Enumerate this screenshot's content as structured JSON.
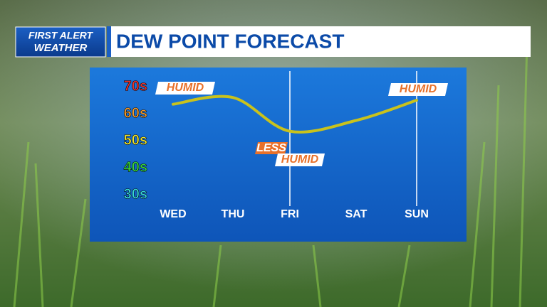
{
  "logo": {
    "line1": "FIRST ALERT",
    "line2": "WEATHER"
  },
  "chart_data": {
    "type": "line",
    "title": "DEW POINT FORECAST",
    "categories": [
      "WED",
      "THU",
      "FRI",
      "SAT",
      "SUN"
    ],
    "series": [
      {
        "name": "Dew point",
        "color": "#c9c21c",
        "values": [
          63.5,
          66,
          53.5,
          57.5,
          65
        ]
      }
    ],
    "ylim": [
      30,
      70
    ],
    "yticks": [
      {
        "value": 70,
        "label": "70s"
      },
      {
        "value": 60,
        "label": "60s"
      },
      {
        "value": 50,
        "label": "50s"
      },
      {
        "value": 40,
        "label": "40s"
      },
      {
        "value": 30,
        "label": "30s"
      }
    ],
    "ytick_colors": [
      "#e8322a",
      "#f39a2c",
      "#f2e52a",
      "#3ad43a",
      "#37d6d6"
    ],
    "annotations": [
      "HUMID",
      "LESS",
      "HUMID",
      "HUMID"
    ]
  }
}
